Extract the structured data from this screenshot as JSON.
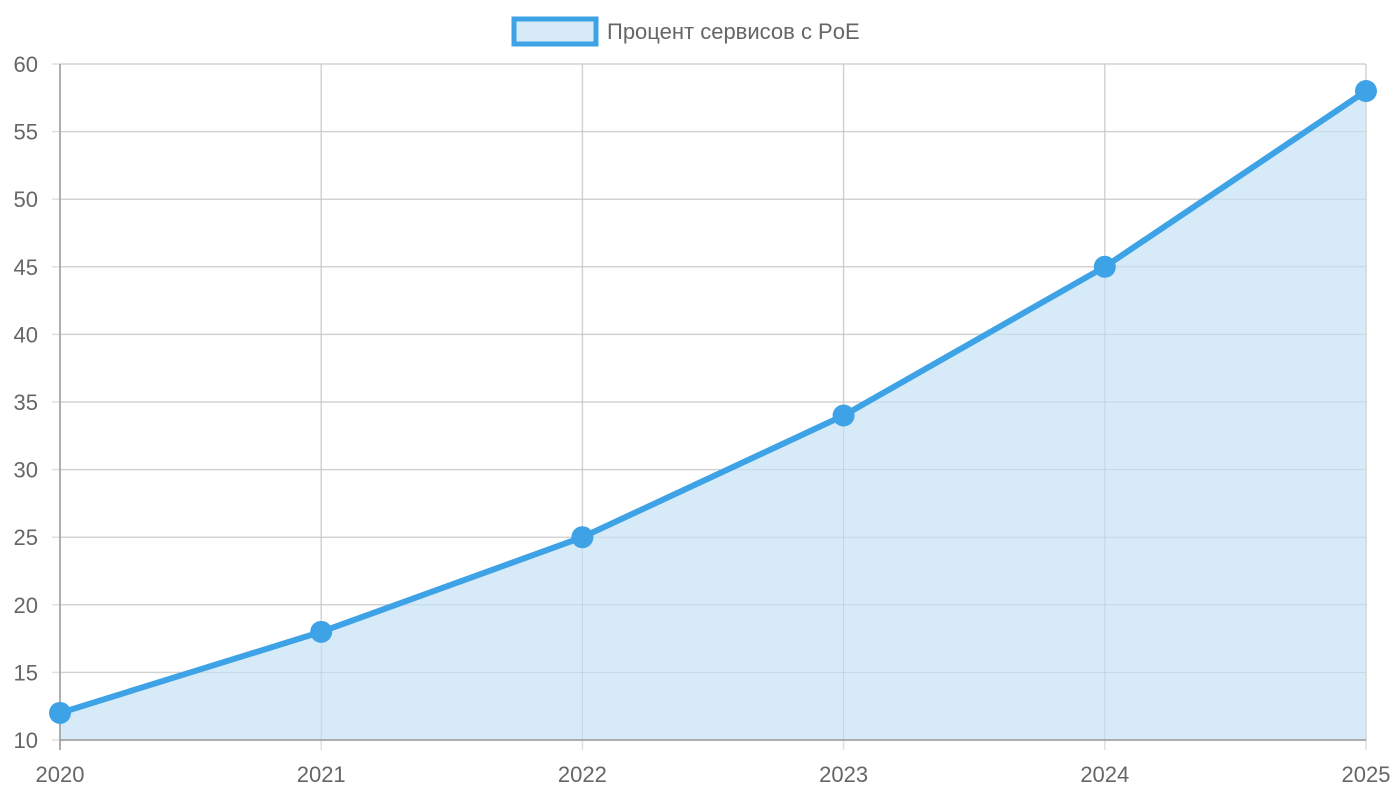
{
  "chart_data": {
    "type": "area",
    "title": "",
    "xlabel": "",
    "ylabel": "",
    "categories": [
      "2020",
      "2021",
      "2022",
      "2023",
      "2024",
      "2025"
    ],
    "series": [
      {
        "name": "Процент сервисов с PoE",
        "values": [
          12,
          18,
          25,
          34,
          45,
          58
        ],
        "line_color": "#3da2e6",
        "fill_color": "#d6eaf8"
      }
    ],
    "ylim": [
      10,
      60
    ],
    "y_ticks": [
      "10",
      "15",
      "20",
      "25",
      "30",
      "35",
      "40",
      "45",
      "50",
      "55",
      "60"
    ],
    "grid": true,
    "legend_position": "top-center",
    "colors": {
      "grid": "#e0e0e0",
      "axis": "#999999",
      "tick_text": "#666666"
    }
  }
}
